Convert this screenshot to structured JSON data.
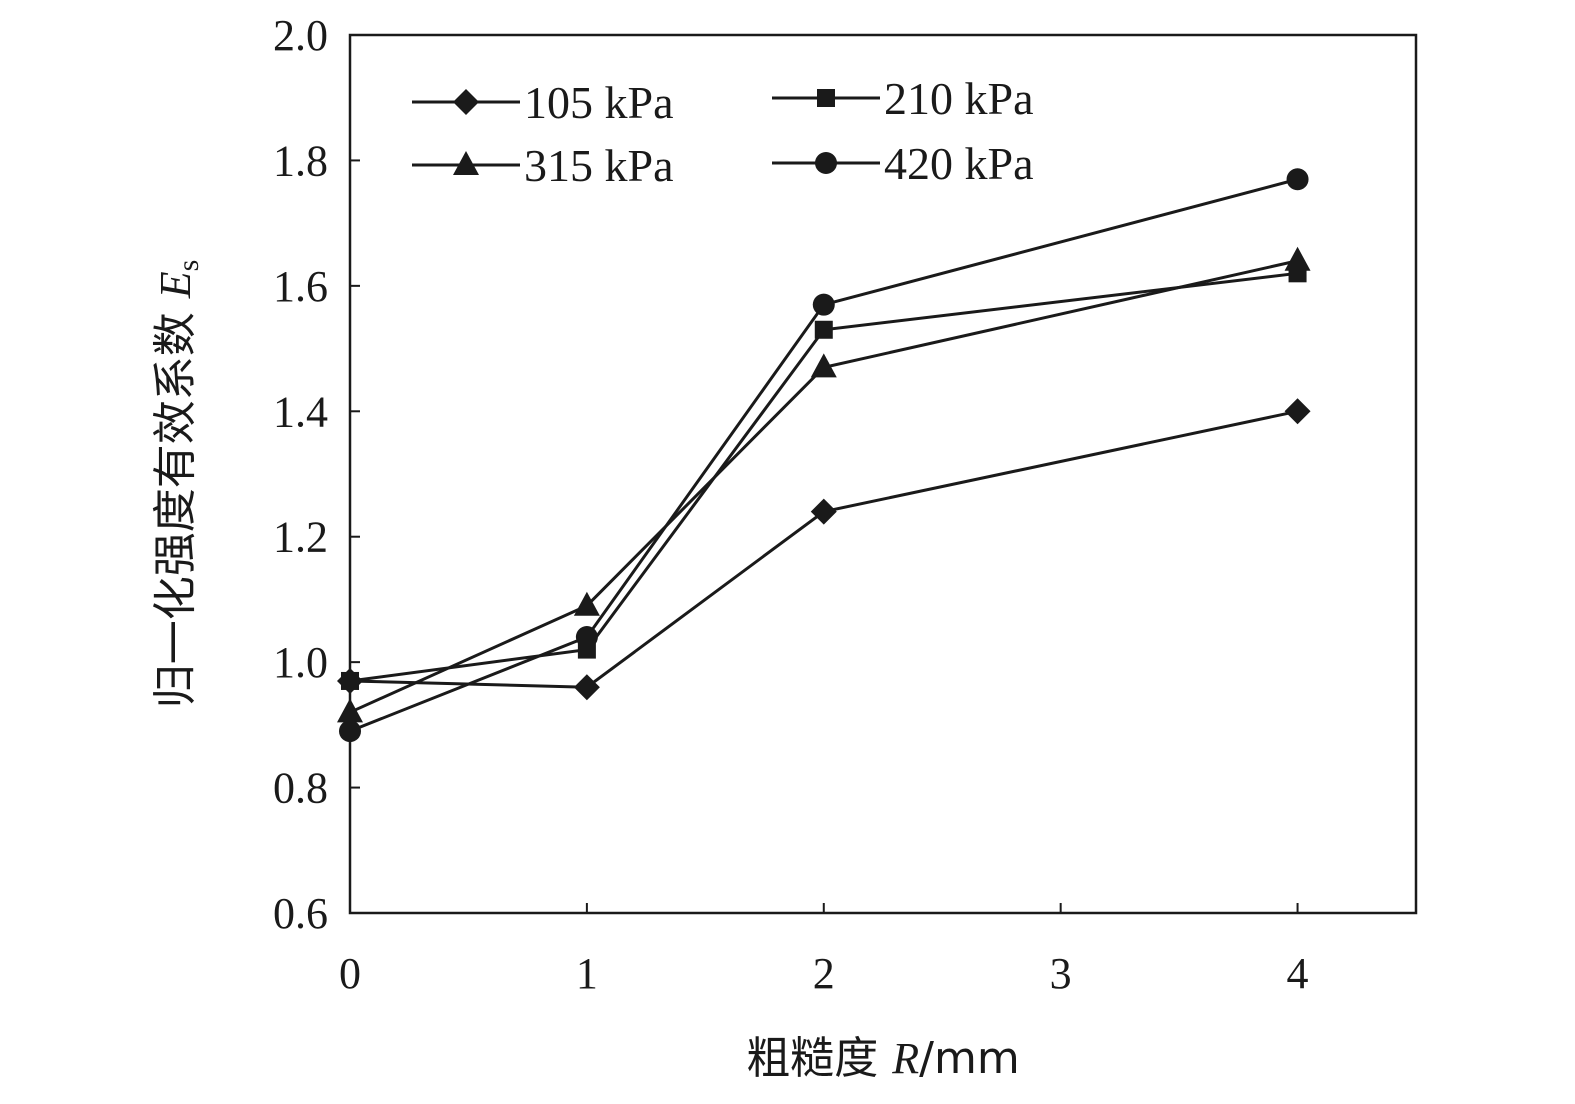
{
  "chart_data": {
    "type": "line",
    "x": [
      0,
      1,
      2,
      4
    ],
    "xlim": [
      0,
      4.5
    ],
    "ylim": [
      0.6,
      2.0
    ],
    "xticks": [
      "0",
      "1",
      "2",
      "3",
      "4"
    ],
    "xtick_values": [
      0,
      1,
      2,
      3,
      4
    ],
    "yticks": [
      "0.6",
      "0.8",
      "1.0",
      "1.2",
      "1.4",
      "1.6",
      "1.8",
      "2.0"
    ],
    "ytick_values": [
      0.6,
      0.8,
      1.0,
      1.2,
      1.4,
      1.6,
      1.8,
      2.0
    ],
    "xlabel": {
      "prefix": "粗糙度 ",
      "var": "R",
      "unit": "/mm"
    },
    "ylabel": {
      "prefix": "归一化强度有效系数 ",
      "var": "E",
      "sub": "s"
    },
    "legend_placement": "top-left",
    "grid": false,
    "line_color": "#1a1a1a",
    "series": [
      {
        "name": "105 kPa",
        "marker": "diamond",
        "values": [
          0.97,
          0.96,
          1.24,
          1.4
        ]
      },
      {
        "name": "210 kPa",
        "marker": "square",
        "values": [
          0.97,
          1.02,
          1.53,
          1.62
        ]
      },
      {
        "name": "315 kPa",
        "marker": "triangle",
        "values": [
          0.92,
          1.09,
          1.47,
          1.64
        ]
      },
      {
        "name": "420 kPa",
        "marker": "circle",
        "values": [
          0.89,
          1.04,
          1.57,
          1.77
        ]
      }
    ]
  }
}
